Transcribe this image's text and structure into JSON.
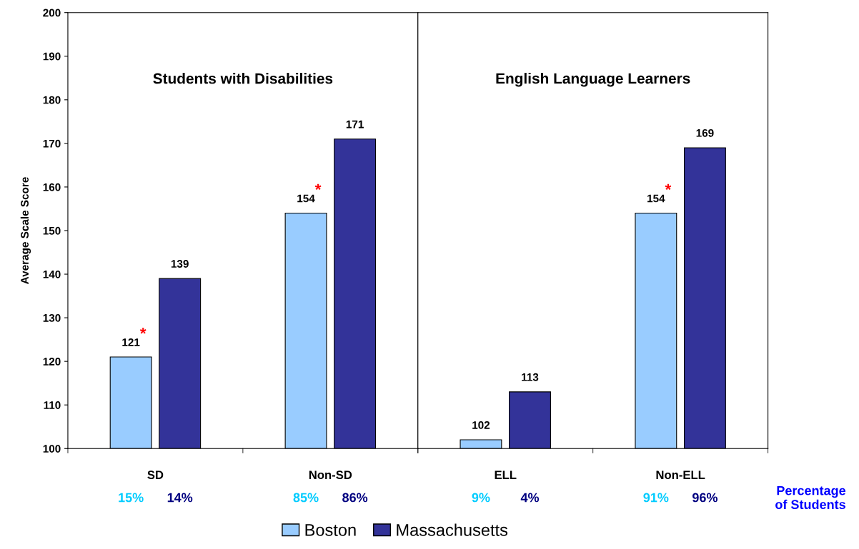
{
  "chart_data": [
    {
      "type": "bar",
      "title": "Students with Disabilities",
      "ylabel": "Average Scale Score",
      "categories": [
        "SD",
        "Non-SD"
      ],
      "series": [
        {
          "name": "Boston",
          "color": "#99ccff",
          "values": [
            121,
            154
          ],
          "value_labels": [
            "121*",
            "154*"
          ]
        },
        {
          "name": "Massachusetts",
          "color": "#333399",
          "values": [
            139,
            171
          ],
          "value_labels": [
            "139",
            "171"
          ]
        }
      ],
      "ylim": [
        100,
        200
      ],
      "yticks": [
        100,
        110,
        120,
        130,
        140,
        150,
        160,
        170,
        180,
        190,
        200
      ],
      "grid": false,
      "legend": "bottom",
      "annotations": [
        "15%",
        "14%",
        "85%",
        "86%"
      ]
    },
    {
      "type": "bar",
      "title": "English Language Learners",
      "categories": [
        "ELL",
        "Non-ELL"
      ],
      "series": [
        {
          "name": "Boston",
          "color": "#99ccff",
          "values": [
            102,
            154
          ],
          "value_labels": [
            "102",
            "154*"
          ]
        },
        {
          "name": "Massachusetts",
          "color": "#333399",
          "values": [
            113,
            169
          ],
          "value_labels": [
            "113",
            "169"
          ]
        }
      ],
      "ylim": [
        100,
        200
      ],
      "tick_labels": "x",
      "grid": false,
      "annotations": [
        "9%",
        "4%",
        "91%",
        "96%",
        "Percentage\nof Students"
      ]
    }
  ]
}
